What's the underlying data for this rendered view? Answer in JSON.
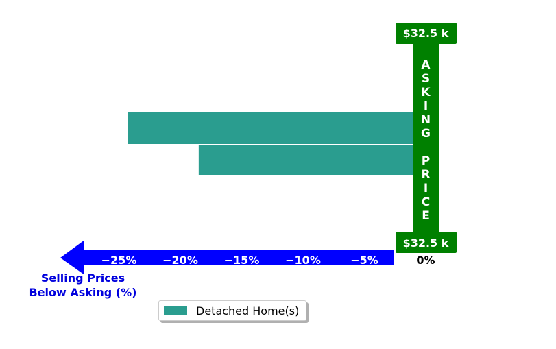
{
  "chart_data": {
    "type": "bar",
    "orientation": "horizontal",
    "categories": [
      "",
      ""
    ],
    "values": [
      -24.3,
      -18.5
    ],
    "xlim": [
      -31.5,
      5
    ],
    "xticks": [
      -25,
      -20,
      -15,
      -10,
      -5,
      0
    ],
    "xtick_labels": [
      "−25%",
      "−20%",
      "−15%",
      "−10%",
      "−5%",
      "0%"
    ],
    "xlabel": "Selling Prices\nBelow Asking (%)",
    "xlabel_lines": [
      "Selling Prices",
      "Below Asking (%)"
    ],
    "grid": false,
    "legend_placement": "bottom-center",
    "series": [
      {
        "name": "Detached Home(s)",
        "values": [
          -24.3,
          -18.5
        ]
      }
    ],
    "asking_price_label": "ASKING PRICE",
    "asking_price_value_top": "$32.5 k",
    "asking_price_value_bottom": "$32.5 k"
  },
  "legend": {
    "label": "Detached Home(s)"
  },
  "colors": {
    "bar": "#2a9d8f",
    "asking_bar": "#008000",
    "arrow": "#0000ff",
    "xlabel": "#0000dd",
    "tick_text_on_arrow": "#ffffff",
    "zero_tick": "#000000"
  }
}
